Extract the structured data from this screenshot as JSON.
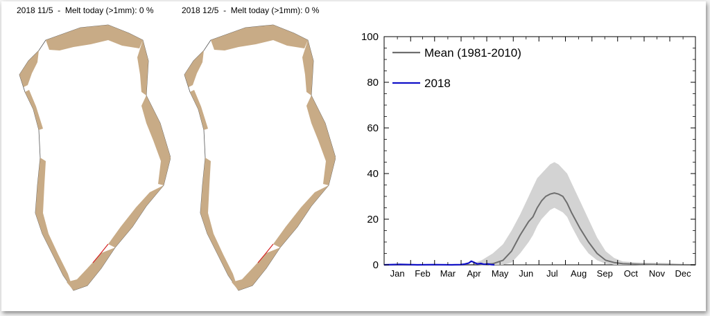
{
  "maps": [
    {
      "date": "2018 11/5",
      "separator": "-",
      "melt_label": "Melt today (>1mm): 0 %"
    },
    {
      "date": "2018 12/5",
      "separator": "-",
      "melt_label": "Melt today (>1mm): 0 %"
    }
  ],
  "map_colors": {
    "ice": "#ffffff",
    "land": "#c8ab86",
    "coast": "#555555",
    "melt": "#d42020"
  },
  "chart_data": {
    "type": "line",
    "title": "",
    "xlabel": "",
    "ylabel": "",
    "ylim": [
      0,
      100
    ],
    "yticks": [
      0,
      20,
      40,
      60,
      80,
      100
    ],
    "ytick_labels": [
      "0",
      "20",
      "40",
      "60",
      "80",
      "100"
    ],
    "x_unit": "day of year",
    "xlim": [
      1,
      365
    ],
    "months": [
      "Jan",
      "Feb",
      "Mar",
      "Apr",
      "May",
      "Jun",
      "Jul",
      "Aug",
      "Sep",
      "Oct",
      "Nov",
      "Dec"
    ],
    "legend_position": "top-left",
    "series": [
      {
        "name": "Mean (1981-2010)",
        "color": "#6e6e6e",
        "x": [
          1,
          60,
          110,
          128,
          140,
          150,
          160,
          170,
          175,
          180,
          185,
          190,
          195,
          200,
          205,
          210,
          215,
          220,
          230,
          240,
          250,
          260,
          270,
          280,
          300,
          330,
          365
        ],
        "y": [
          0,
          0,
          0,
          0.5,
          2,
          6,
          13,
          19,
          21,
          25,
          28,
          30,
          31,
          31.5,
          31,
          30,
          27,
          23,
          16,
          10,
          5,
          2,
          1,
          0.5,
          0.2,
          0.1,
          0
        ]
      },
      {
        "name": "2018",
        "color": "#1010c8",
        "x": [
          1,
          20,
          40,
          60,
          80,
          90,
          95,
          100,
          103,
          106,
          110,
          114,
          118,
          122,
          126,
          130
        ],
        "y": [
          0,
          0.2,
          0,
          0.1,
          0,
          0.1,
          0.3,
          0.8,
          1.6,
          1.1,
          0.4,
          0.6,
          0.2,
          0.4,
          0.1,
          0
        ]
      }
    ],
    "range_band": {
      "color": "#d3d3d3",
      "x": [
        1,
        100,
        115,
        128,
        140,
        150,
        160,
        170,
        175,
        180,
        185,
        190,
        195,
        200,
        205,
        210,
        215,
        220,
        230,
        240,
        250,
        260,
        270,
        280,
        300,
        330,
        365
      ],
      "y_low": [
        0,
        0,
        0,
        0,
        0,
        1,
        5,
        10,
        13,
        17,
        20,
        22,
        24,
        25,
        24,
        23,
        21,
        17,
        10,
        5,
        2,
        0.5,
        0,
        0,
        0,
        0,
        0
      ],
      "y_high": [
        0,
        0,
        2,
        5,
        9,
        15,
        22,
        30,
        34,
        38,
        40,
        42,
        44,
        45,
        44,
        42,
        40,
        36,
        28,
        20,
        12,
        6,
        3,
        1.5,
        1,
        0.8,
        0
      ]
    }
  }
}
